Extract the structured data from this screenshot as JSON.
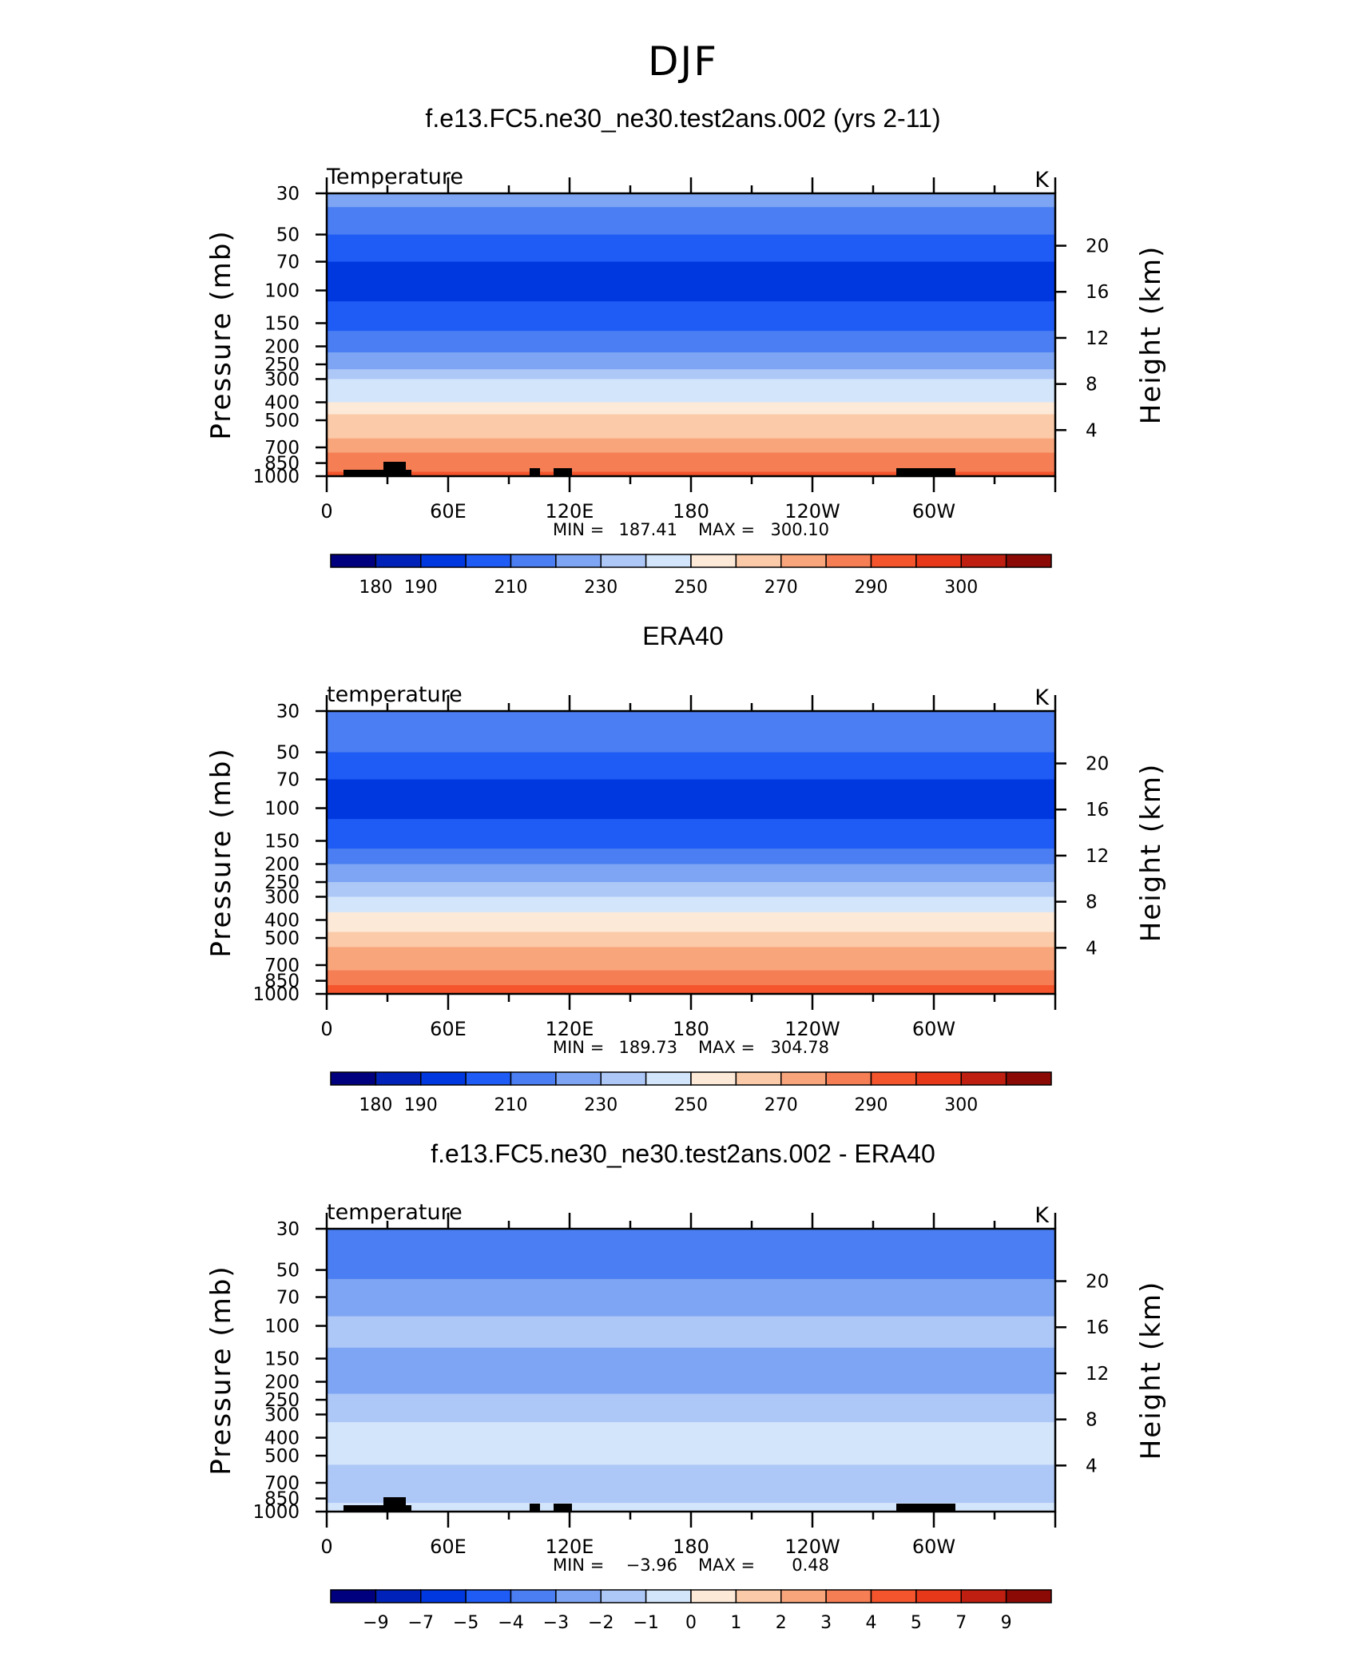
{
  "page_title": "DJF",
  "colors": {
    "abs_scale": [
      "#00007f",
      "#0022b8",
      "#0038e0",
      "#1f5cf5",
      "#4a7ef2",
      "#7ea5f3",
      "#adc7f7",
      "#d3e5fb",
      "#fde9d8",
      "#fbcaa8",
      "#f9a57c",
      "#f57e54",
      "#f5552c",
      "#e8381a",
      "#bf1f10",
      "#8c0a06"
    ],
    "diff_scale": [
      "#00007f",
      "#0022b8",
      "#0038e0",
      "#1f5cf5",
      "#4a7ef2",
      "#7ea5f3",
      "#adc7f7",
      "#d3e5fb",
      "#fde9d8",
      "#fbcaa8",
      "#f9a57c",
      "#f57e54",
      "#f5552c",
      "#e8381a",
      "#bf1f10",
      "#8c0a06"
    ]
  },
  "chart_data": [
    {
      "type": "heatmap",
      "title": "f.e13.FC5.ne30_ne30.test2ans.002 (yrs 2-11)",
      "left_label": "Temperature",
      "units": "K",
      "ylabel": "Pressure  (mb)",
      "ylabel_right": "Height  (km)",
      "x_ticks": [
        "0",
        "60E",
        "120E",
        "180",
        "120W",
        "60W"
      ],
      "y_ticks": [
        "30",
        "50",
        "70",
        "100",
        "150",
        "200",
        "250",
        "300",
        "400",
        "500",
        "700",
        "850",
        "1000"
      ],
      "y_ticks_right": [
        "20",
        "16",
        "12",
        "8",
        "4"
      ],
      "stats": {
        "min_label": "MIN =",
        "min": "187.41",
        "max_label": "MAX =",
        "max": "300.10"
      },
      "colorbar_labels": [
        "180",
        "190",
        "210",
        "230",
        "250",
        "270",
        "290",
        "300"
      ],
      "levels_top_to_bottom": [
        {
          "p": 30,
          "v": 225
        },
        {
          "p": 50,
          "v": 210
        },
        {
          "p": 70,
          "v": 200
        },
        {
          "p": 100,
          "v": 197
        },
        {
          "p": 150,
          "v": 205
        },
        {
          "p": 200,
          "v": 218
        },
        {
          "p": 250,
          "v": 228
        },
        {
          "p": 300,
          "v": 238
        },
        {
          "p": 400,
          "v": 252
        },
        {
          "p": 500,
          "v": 262
        },
        {
          "p": 700,
          "v": 276
        },
        {
          "p": 850,
          "v": 285
        },
        {
          "p": 1000,
          "v": 292
        }
      ],
      "ylim": [
        1000,
        30
      ]
    },
    {
      "type": "heatmap",
      "title": "ERA40",
      "left_label": "temperature",
      "units": "K",
      "ylabel": "Pressure  (mb)",
      "ylabel_right": "Height  (km)",
      "x_ticks": [
        "0",
        "60E",
        "120E",
        "180",
        "120W",
        "60W"
      ],
      "y_ticks": [
        "30",
        "50",
        "70",
        "100",
        "150",
        "200",
        "250",
        "300",
        "400",
        "500",
        "700",
        "850",
        "1000"
      ],
      "y_ticks_right": [
        "20",
        "16",
        "12",
        "8",
        "4"
      ],
      "stats": {
        "min_label": "MIN =",
        "min": "189.73",
        "max_label": "MAX =",
        "max": "304.78"
      },
      "colorbar_labels": [
        "180",
        "190",
        "210",
        "230",
        "250",
        "270",
        "290",
        "300"
      ],
      "levels_top_to_bottom": [
        {
          "p": 30,
          "v": 222
        },
        {
          "p": 50,
          "v": 208
        },
        {
          "p": 70,
          "v": 199
        },
        {
          "p": 100,
          "v": 198
        },
        {
          "p": 150,
          "v": 206
        },
        {
          "p": 200,
          "v": 219
        },
        {
          "p": 250,
          "v": 229
        },
        {
          "p": 300,
          "v": 239
        },
        {
          "p": 400,
          "v": 253
        },
        {
          "p": 500,
          "v": 263
        },
        {
          "p": 700,
          "v": 277
        },
        {
          "p": 850,
          "v": 286
        },
        {
          "p": 1000,
          "v": 294
        }
      ],
      "ylim": [
        1000,
        30
      ]
    },
    {
      "type": "heatmap",
      "title": "f.e13.FC5.ne30_ne30.test2ans.002 - ERA40",
      "left_label": "temperature",
      "units": "K",
      "ylabel": "Pressure  (mb)",
      "ylabel_right": "Height  (km)",
      "x_ticks": [
        "0",
        "60E",
        "120E",
        "180",
        "120W",
        "60W"
      ],
      "y_ticks": [
        "30",
        "50",
        "70",
        "100",
        "150",
        "200",
        "250",
        "300",
        "400",
        "500",
        "700",
        "850",
        "1000"
      ],
      "y_ticks_right": [
        "20",
        "16",
        "12",
        "8",
        "4"
      ],
      "stats": {
        "min_label": "MIN =",
        "min": "−3.96",
        "max_label": "MAX =",
        "max": "0.48"
      },
      "colorbar_labels": [
        "−9",
        "−7",
        "−5",
        "−4",
        "−3",
        "−2",
        "−1",
        "0",
        "1",
        "2",
        "3",
        "4",
        "5",
        "7",
        "9"
      ],
      "levels_top_to_bottom": [
        {
          "p": 30,
          "v": -3.5
        },
        {
          "p": 50,
          "v": -3.3
        },
        {
          "p": 70,
          "v": -2.6
        },
        {
          "p": 100,
          "v": -1.7
        },
        {
          "p": 150,
          "v": -2.2
        },
        {
          "p": 200,
          "v": -2.5
        },
        {
          "p": 250,
          "v": -1.6
        },
        {
          "p": 300,
          "v": -1.2
        },
        {
          "p": 400,
          "v": -0.6
        },
        {
          "p": 500,
          "v": -0.7
        },
        {
          "p": 700,
          "v": -1.4
        },
        {
          "p": 850,
          "v": -1.1
        },
        {
          "p": 1000,
          "v": -0.6
        }
      ],
      "ylim": [
        1000,
        30
      ]
    }
  ]
}
